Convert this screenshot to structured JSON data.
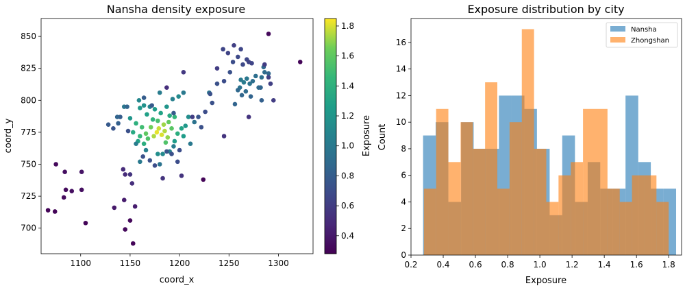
{
  "chart_data": [
    {
      "type": "scatter",
      "title": "Nansha density exposure",
      "xlabel": "coord_x",
      "ylabel": "coord_y",
      "xlim": [
        1060,
        1335
      ],
      "ylim": [
        680,
        864
      ],
      "xticks": [
        1100,
        1150,
        1200,
        1250,
        1300
      ],
      "yticks": [
        700,
        725,
        750,
        775,
        800,
        825,
        850
      ],
      "colormap": "viridis",
      "colorbar": {
        "label": "Exposure",
        "range": [
          0.28,
          1.85
        ],
        "ticks": [
          0.4,
          0.6,
          0.8,
          1.0,
          1.2,
          1.4,
          1.6,
          1.8
        ]
      },
      "points": [
        {
          "x": 1177,
          "y": 775,
          "c": 1.82
        },
        {
          "x": 1182,
          "y": 773,
          "c": 1.8
        },
        {
          "x": 1179,
          "y": 778,
          "c": 1.78
        },
        {
          "x": 1185,
          "y": 776,
          "c": 1.75
        },
        {
          "x": 1174,
          "y": 772,
          "c": 1.74
        },
        {
          "x": 1184,
          "y": 781,
          "c": 1.72
        },
        {
          "x": 1188,
          "y": 771,
          "c": 1.7
        },
        {
          "x": 1171,
          "y": 779,
          "c": 1.65
        },
        {
          "x": 1189,
          "y": 783,
          "c": 1.62
        },
        {
          "x": 1166,
          "y": 774,
          "c": 1.6
        },
        {
          "x": 1192,
          "y": 778,
          "c": 1.58
        },
        {
          "x": 1168,
          "y": 770,
          "c": 1.55
        },
        {
          "x": 1186,
          "y": 767,
          "c": 1.55
        },
        {
          "x": 1162,
          "y": 779,
          "c": 1.5
        },
        {
          "x": 1178,
          "y": 784,
          "c": 1.52
        },
        {
          "x": 1160,
          "y": 772,
          "c": 1.45
        },
        {
          "x": 1195,
          "y": 787,
          "c": 1.45
        },
        {
          "x": 1173,
          "y": 785,
          "c": 1.42
        },
        {
          "x": 1156,
          "y": 782,
          "c": 1.4
        },
        {
          "x": 1198,
          "y": 774,
          "c": 1.38
        },
        {
          "x": 1164,
          "y": 766,
          "c": 1.38
        },
        {
          "x": 1190,
          "y": 788,
          "c": 1.35
        },
        {
          "x": 1153,
          "y": 775,
          "c": 1.35
        },
        {
          "x": 1202,
          "y": 778,
          "c": 1.3
        },
        {
          "x": 1181,
          "y": 790,
          "c": 1.3
        },
        {
          "x": 1167,
          "y": 789,
          "c": 1.28
        },
        {
          "x": 1158,
          "y": 768,
          "c": 1.28
        },
        {
          "x": 1204,
          "y": 772,
          "c": 1.25
        },
        {
          "x": 1175,
          "y": 793,
          "c": 1.25
        },
        {
          "x": 1195,
          "y": 768,
          "c": 1.25
        },
        {
          "x": 1160,
          "y": 794,
          "c": 1.22
        },
        {
          "x": 1206,
          "y": 780,
          "c": 1.22
        },
        {
          "x": 1187,
          "y": 795,
          "c": 1.2
        },
        {
          "x": 1150,
          "y": 786,
          "c": 1.2
        },
        {
          "x": 1164,
          "y": 796,
          "c": 1.18
        },
        {
          "x": 1209,
          "y": 787,
          "c": 1.15
        },
        {
          "x": 1199,
          "y": 803,
          "c": 1.12
        },
        {
          "x": 1178,
          "y": 758,
          "c": 1.15
        },
        {
          "x": 1183,
          "y": 758,
          "c": 1.12
        },
        {
          "x": 1159,
          "y": 800,
          "c": 1.1
        },
        {
          "x": 1170,
          "y": 795,
          "c": 1.1
        },
        {
          "x": 1193,
          "y": 801,
          "c": 1.05
        },
        {
          "x": 1166,
          "y": 761,
          "c": 1.05
        },
        {
          "x": 1190,
          "y": 760,
          "c": 1.05
        },
        {
          "x": 1194,
          "y": 764,
          "c": 1.02
        },
        {
          "x": 1156,
          "y": 766,
          "c": 1.02
        },
        {
          "x": 1180,
          "y": 806,
          "c": 1.02
        },
        {
          "x": 1204,
          "y": 806,
          "c": 1.0
        },
        {
          "x": 1160,
          "y": 752,
          "c": 1.0
        },
        {
          "x": 1211,
          "y": 766,
          "c": 1.0
        },
        {
          "x": 1144,
          "y": 795,
          "c": 0.98
        },
        {
          "x": 1215,
          "y": 783,
          "c": 0.95
        },
        {
          "x": 1180,
          "y": 750,
          "c": 0.95
        },
        {
          "x": 1230,
          "y": 806,
          "c": 0.95
        },
        {
          "x": 1262,
          "y": 816,
          "c": 1.0
        },
        {
          "x": 1265,
          "y": 814,
          "c": 1.02
        },
        {
          "x": 1268,
          "y": 817,
          "c": 0.98
        },
        {
          "x": 1271,
          "y": 813,
          "c": 0.95
        },
        {
          "x": 1261,
          "y": 810,
          "c": 0.95
        },
        {
          "x": 1274,
          "y": 815,
          "c": 0.92
        },
        {
          "x": 1277,
          "y": 819,
          "c": 0.92
        },
        {
          "x": 1283,
          "y": 818,
          "c": 0.92
        },
        {
          "x": 1286,
          "y": 822,
          "c": 0.9
        },
        {
          "x": 1267,
          "y": 807,
          "c": 0.9
        },
        {
          "x": 1280,
          "y": 810,
          "c": 0.9
        },
        {
          "x": 1259,
          "y": 808,
          "c": 0.88
        },
        {
          "x": 1285,
          "y": 826,
          "c": 0.88
        },
        {
          "x": 1290,
          "y": 821,
          "c": 0.86
        },
        {
          "x": 1263,
          "y": 804,
          "c": 0.86
        },
        {
          "x": 1282,
          "y": 810,
          "c": 0.85
        },
        {
          "x": 1272,
          "y": 803,
          "c": 0.85
        },
        {
          "x": 1283,
          "y": 800,
          "c": 0.82
        },
        {
          "x": 1256,
          "y": 797,
          "c": 0.85
        },
        {
          "x": 1147,
          "y": 795,
          "c": 0.85
        },
        {
          "x": 1138,
          "y": 782,
          "c": 0.82
        },
        {
          "x": 1140,
          "y": 787,
          "c": 0.8
        },
        {
          "x": 1164,
          "y": 802,
          "c": 0.8
        },
        {
          "x": 1137,
          "y": 787,
          "c": 0.85
        },
        {
          "x": 1128,
          "y": 781,
          "c": 0.78
        },
        {
          "x": 1133,
          "y": 778,
          "c": 0.75
        },
        {
          "x": 1148,
          "y": 776,
          "c": 0.72
        },
        {
          "x": 1194,
          "y": 790,
          "c": 0.78
        },
        {
          "x": 1172,
          "y": 796,
          "c": 0.78
        },
        {
          "x": 1187,
          "y": 760,
          "c": 0.75
        },
        {
          "x": 1192,
          "y": 758,
          "c": 0.72
        },
        {
          "x": 1170,
          "y": 753,
          "c": 0.72
        },
        {
          "x": 1198,
          "y": 752,
          "c": 0.7
        },
        {
          "x": 1175,
          "y": 749,
          "c": 0.7
        },
        {
          "x": 1200,
          "y": 761,
          "c": 0.7
        },
        {
          "x": 1163,
          "y": 756,
          "c": 0.72
        },
        {
          "x": 1219,
          "y": 787,
          "c": 0.75
        },
        {
          "x": 1222,
          "y": 779,
          "c": 0.72
        },
        {
          "x": 1233,
          "y": 798,
          "c": 0.72
        },
        {
          "x": 1226,
          "y": 791,
          "c": 0.7
        },
        {
          "x": 1238,
          "y": 813,
          "c": 0.72
        },
        {
          "x": 1231,
          "y": 805,
          "c": 0.72
        },
        {
          "x": 1245,
          "y": 815,
          "c": 0.7
        },
        {
          "x": 1251,
          "y": 822,
          "c": 0.72
        },
        {
          "x": 1254,
          "y": 830,
          "c": 0.7
        },
        {
          "x": 1259,
          "y": 834,
          "c": 0.68
        },
        {
          "x": 1264,
          "y": 828,
          "c": 0.68
        },
        {
          "x": 1268,
          "y": 832,
          "c": 0.66
        },
        {
          "x": 1273,
          "y": 829,
          "c": 0.65
        },
        {
          "x": 1262,
          "y": 840,
          "c": 0.66
        },
        {
          "x": 1270,
          "y": 830,
          "c": 0.64
        },
        {
          "x": 1244,
          "y": 840,
          "c": 0.65
        },
        {
          "x": 1249,
          "y": 837,
          "c": 0.64
        },
        {
          "x": 1255,
          "y": 843,
          "c": 0.62
        },
        {
          "x": 1290,
          "y": 818,
          "c": 0.62
        },
        {
          "x": 1292,
          "y": 813,
          "c": 0.62
        },
        {
          "x": 1286,
          "y": 828,
          "c": 0.6
        },
        {
          "x": 1295,
          "y": 800,
          "c": 0.6
        },
        {
          "x": 1238,
          "y": 825,
          "c": 0.6
        },
        {
          "x": 1204,
          "y": 822,
          "c": 0.58
        },
        {
          "x": 1213,
          "y": 787,
          "c": 0.6
        },
        {
          "x": 1245,
          "y": 772,
          "c": 0.55
        },
        {
          "x": 1270,
          "y": 787,
          "c": 0.55
        },
        {
          "x": 1183,
          "y": 739,
          "c": 0.55
        },
        {
          "x": 1202,
          "y": 741,
          "c": 0.55
        },
        {
          "x": 1150,
          "y": 742,
          "c": 0.55
        },
        {
          "x": 1152,
          "y": 735,
          "c": 0.52
        },
        {
          "x": 1143,
          "y": 746,
          "c": 0.5
        },
        {
          "x": 1145,
          "y": 742,
          "c": 0.5
        },
        {
          "x": 1187,
          "y": 810,
          "c": 0.52
        },
        {
          "x": 1144,
          "y": 722,
          "c": 0.42
        },
        {
          "x": 1155,
          "y": 717,
          "c": 0.42
        },
        {
          "x": 1134,
          "y": 716,
          "c": 0.4
        },
        {
          "x": 1101,
          "y": 744,
          "c": 0.38
        },
        {
          "x": 1101,
          "y": 730,
          "c": 0.35
        },
        {
          "x": 1091,
          "y": 729,
          "c": 0.35
        },
        {
          "x": 1084,
          "y": 744,
          "c": 0.35
        },
        {
          "x": 1085,
          "y": 730,
          "c": 0.33
        },
        {
          "x": 1083,
          "y": 724,
          "c": 0.33
        },
        {
          "x": 1075,
          "y": 750,
          "c": 0.32
        },
        {
          "x": 1074,
          "y": 713,
          "c": 0.3
        },
        {
          "x": 1067,
          "y": 714,
          "c": 0.3
        },
        {
          "x": 1105,
          "y": 704,
          "c": 0.3
        },
        {
          "x": 1145,
          "y": 699,
          "c": 0.32
        },
        {
          "x": 1150,
          "y": 706,
          "c": 0.32
        },
        {
          "x": 1153,
          "y": 688,
          "c": 0.3
        },
        {
          "x": 1224,
          "y": 738,
          "c": 0.3
        },
        {
          "x": 1322,
          "y": 830,
          "c": 0.3
        },
        {
          "x": 1290,
          "y": 852,
          "c": 0.32
        }
      ]
    },
    {
      "type": "histogram",
      "title": "Exposure distribution by city",
      "xlabel": "Exposure",
      "ylabel": "Count",
      "xlim": [
        0.2,
        1.88
      ],
      "ylim": [
        0,
        17.8
      ],
      "xticks": [
        0.2,
        0.4,
        0.6,
        0.8,
        1.0,
        1.2,
        1.4,
        1.6,
        1.8
      ],
      "yticks": [
        0,
        2,
        4,
        6,
        8,
        10,
        12,
        14,
        16
      ],
      "legend_position": "top-right",
      "series": [
        {
          "name": "Nansha",
          "color": "#1f77b4",
          "bins": [
            0.275,
            0.353,
            0.432,
            0.511,
            0.589,
            0.668,
            0.746,
            0.825,
            0.904,
            0.982,
            1.061,
            1.139,
            1.218,
            1.297,
            1.375,
            1.454,
            1.532,
            1.611,
            1.689,
            1.768,
            1.846
          ],
          "counts": [
            9,
            10,
            4,
            10,
            8,
            8,
            12,
            12,
            11,
            8,
            3,
            9,
            4,
            7,
            5,
            5,
            12,
            7,
            5,
            5
          ]
        },
        {
          "name": "Zhongshan",
          "color": "#ff7f0e",
          "bins": [
            0.28,
            0.356,
            0.432,
            0.508,
            0.584,
            0.66,
            0.736,
            0.812,
            0.888,
            0.964,
            1.04,
            1.116,
            1.192,
            1.268,
            1.344,
            1.42,
            1.496,
            1.572,
            1.648,
            1.724,
            1.8
          ],
          "counts": [
            5,
            11,
            7,
            10,
            8,
            13,
            5,
            10,
            17,
            8,
            4,
            6,
            7,
            11,
            11,
            5,
            4,
            6,
            6,
            4
          ]
        }
      ]
    }
  ]
}
